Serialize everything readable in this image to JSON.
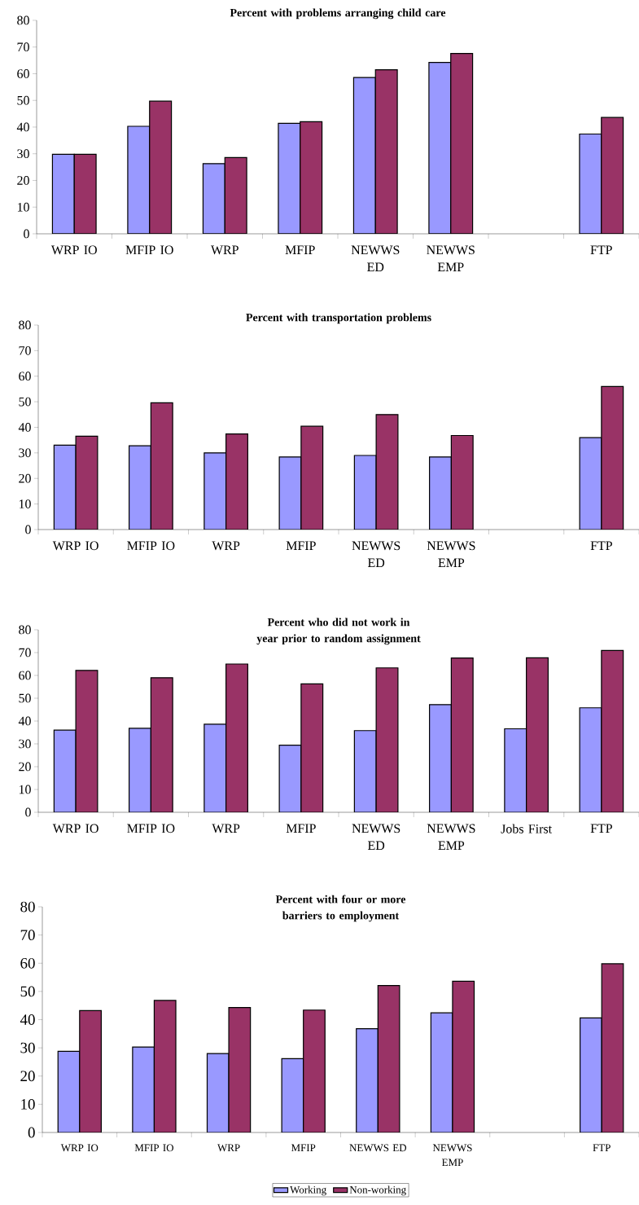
{
  "chart_data": [
    {
      "type": "bar",
      "title": "Percent with problems arranging child care",
      "categories": [
        "WRP IO",
        "MFIP IO",
        "WRP",
        "MFIP",
        "NEWWS ED",
        "NEWWS EMP",
        null,
        "FTP"
      ],
      "ylim": [
        0,
        80
      ],
      "yticks": [
        0,
        10,
        20,
        30,
        40,
        50,
        60,
        70,
        80
      ],
      "grid": false,
      "legend": false,
      "series": [
        {
          "color": "#9999ff",
          "values": [
            29.8,
            40.3,
            26.3,
            41.4,
            58.6,
            64.2,
            null,
            37.4
          ]
        },
        {
          "color": "#993366",
          "values": [
            29.8,
            49.7,
            28.6,
            42.0,
            61.5,
            67.6,
            null,
            43.6
          ]
        }
      ]
    },
    {
      "type": "bar",
      "title": "Percent with transportation problems",
      "categories": [
        "WRP IO",
        "MFIP IO",
        "WRP",
        "MFIP",
        "NEWWS ED",
        "NEWWS EMP",
        null,
        "FTP"
      ],
      "ylim": [
        0,
        80
      ],
      "yticks": [
        0,
        10,
        20,
        30,
        40,
        50,
        60,
        70,
        80
      ],
      "grid": false,
      "legend": false,
      "series": [
        {
          "color": "#9999ff",
          "values": [
            33.0,
            32.8,
            30.0,
            28.4,
            29.0,
            28.4,
            null,
            36.0
          ]
        },
        {
          "color": "#993366",
          "values": [
            36.5,
            49.6,
            37.4,
            40.4,
            45.0,
            36.8,
            null,
            56.0
          ]
        }
      ]
    },
    {
      "type": "bar",
      "title": "Percent who did not work in year prior to random assignment",
      "categories": [
        "WRP IO",
        "MFIP IO",
        "WRP",
        "MFIP",
        "NEWWS ED",
        "NEWWS EMP",
        "Jobs First",
        "FTP"
      ],
      "ylim": [
        0,
        80
      ],
      "yticks": [
        0,
        10,
        20,
        30,
        40,
        50,
        60,
        70,
        80
      ],
      "grid": false,
      "legend": false,
      "series": [
        {
          "color": "#9999ff",
          "values": [
            36.0,
            36.8,
            38.6,
            29.4,
            35.8,
            47.2,
            36.6,
            45.8
          ]
        },
        {
          "color": "#993366",
          "values": [
            62.2,
            59.0,
            65.0,
            56.3,
            63.3,
            67.6,
            67.7,
            70.9
          ]
        }
      ]
    },
    {
      "type": "bar",
      "title": "Percent with four or more barriers to employment",
      "categories": [
        "WRP IO",
        "MFIP IO",
        "WRP",
        "MFIP",
        "NEWWS ED",
        "NEWWS EMP",
        null,
        "FTP"
      ],
      "ylim": [
        0,
        80
      ],
      "yticks": [
        0,
        10,
        20,
        30,
        40,
        50,
        60,
        70,
        80
      ],
      "grid": false,
      "legend": "bottom",
      "series": [
        {
          "name": "Working",
          "color": "#9999ff",
          "values": [
            28.8,
            30.3,
            28.0,
            26.2,
            36.8,
            42.4,
            null,
            40.6
          ]
        },
        {
          "name": "Non-working",
          "color": "#993366",
          "values": [
            43.2,
            46.8,
            44.3,
            43.4,
            52.1,
            53.6,
            null,
            59.8
          ]
        }
      ]
    }
  ]
}
